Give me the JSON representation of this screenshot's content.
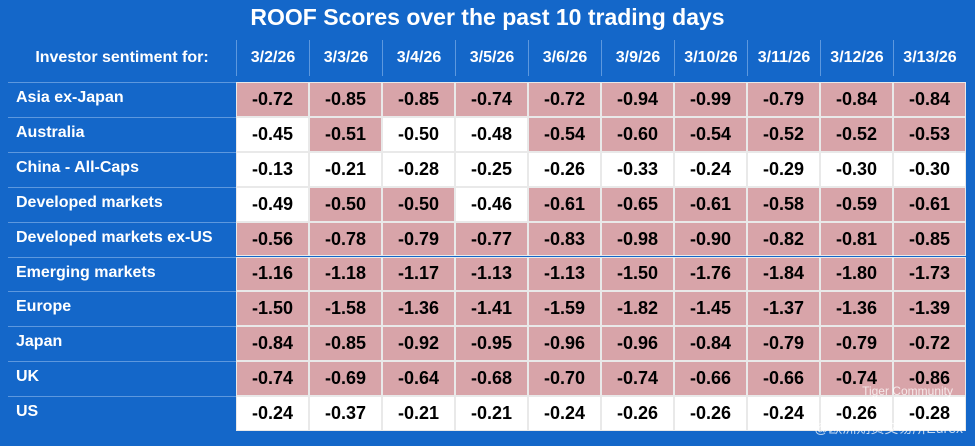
{
  "title": "ROOF Scores over the past 10 trading days",
  "table": {
    "corner": "Investor sentiment for:",
    "columns": [
      "3/2/26",
      "3/3/26",
      "3/4/26",
      "3/5/26",
      "3/6/26",
      "3/9/26",
      "3/10/26",
      "3/11/26",
      "3/12/26",
      "3/13/26"
    ],
    "rows": [
      {
        "label": "Asia ex-Japan",
        "values": [
          "-0.72",
          "-0.85",
          "-0.85",
          "-0.74",
          "-0.72",
          "-0.94",
          "-0.99",
          "-0.79",
          "-0.84",
          "-0.84"
        ],
        "shaded": [
          true,
          true,
          true,
          true,
          true,
          true,
          true,
          true,
          true,
          true
        ]
      },
      {
        "label": "Australia",
        "values": [
          "-0.45",
          "-0.51",
          "-0.50",
          "-0.48",
          "-0.54",
          "-0.60",
          "-0.54",
          "-0.52",
          "-0.52",
          "-0.53"
        ],
        "shaded": [
          false,
          true,
          false,
          false,
          true,
          true,
          true,
          true,
          true,
          true
        ]
      },
      {
        "label": "China - All-Caps",
        "values": [
          "-0.13",
          "-0.21",
          "-0.28",
          "-0.25",
          "-0.26",
          "-0.33",
          "-0.24",
          "-0.29",
          "-0.30",
          "-0.30"
        ],
        "shaded": [
          false,
          false,
          false,
          false,
          false,
          false,
          false,
          false,
          false,
          false
        ]
      },
      {
        "label": "Developed markets",
        "values": [
          "-0.49",
          "-0.50",
          "-0.50",
          "-0.46",
          "-0.61",
          "-0.65",
          "-0.61",
          "-0.58",
          "-0.59",
          "-0.61"
        ],
        "shaded": [
          false,
          true,
          true,
          false,
          true,
          true,
          true,
          true,
          true,
          true
        ]
      },
      {
        "label": "Developed markets ex-US",
        "values": [
          "-0.56",
          "-0.78",
          "-0.79",
          "-0.77",
          "-0.83",
          "-0.98",
          "-0.90",
          "-0.82",
          "-0.81",
          "-0.85"
        ],
        "shaded": [
          true,
          true,
          true,
          true,
          true,
          true,
          true,
          true,
          true,
          true
        ]
      },
      {
        "label": "Emerging markets",
        "values": [
          "-1.16",
          "-1.18",
          "-1.17",
          "-1.13",
          "-1.13",
          "-1.50",
          "-1.76",
          "-1.84",
          "-1.80",
          "-1.73"
        ],
        "shaded": [
          true,
          true,
          true,
          true,
          true,
          true,
          true,
          true,
          true,
          true
        ]
      },
      {
        "label": "Europe",
        "values": [
          "-1.50",
          "-1.58",
          "-1.36",
          "-1.41",
          "-1.59",
          "-1.82",
          "-1.45",
          "-1.37",
          "-1.36",
          "-1.39"
        ],
        "shaded": [
          true,
          true,
          true,
          true,
          true,
          true,
          true,
          true,
          true,
          true
        ]
      },
      {
        "label": "Japan",
        "values": [
          "-0.84",
          "-0.85",
          "-0.92",
          "-0.95",
          "-0.96",
          "-0.96",
          "-0.84",
          "-0.79",
          "-0.79",
          "-0.72"
        ],
        "shaded": [
          true,
          true,
          true,
          true,
          true,
          true,
          true,
          true,
          true,
          true
        ]
      },
      {
        "label": "UK",
        "values": [
          "-0.74",
          "-0.69",
          "-0.64",
          "-0.68",
          "-0.70",
          "-0.74",
          "-0.66",
          "-0.66",
          "-0.74",
          "-0.86"
        ],
        "shaded": [
          true,
          true,
          true,
          true,
          true,
          true,
          true,
          true,
          true,
          true
        ]
      },
      {
        "label": "US",
        "values": [
          "-0.24",
          "-0.37",
          "-0.21",
          "-0.21",
          "-0.24",
          "-0.26",
          "-0.26",
          "-0.24",
          "-0.26",
          "-0.28"
        ],
        "shaded": [
          false,
          false,
          false,
          false,
          false,
          false,
          false,
          false,
          false,
          false
        ]
      }
    ]
  },
  "watermark": {
    "line1": "Tiger Community",
    "line2": "@欧洲期货交易所Eurex"
  }
}
